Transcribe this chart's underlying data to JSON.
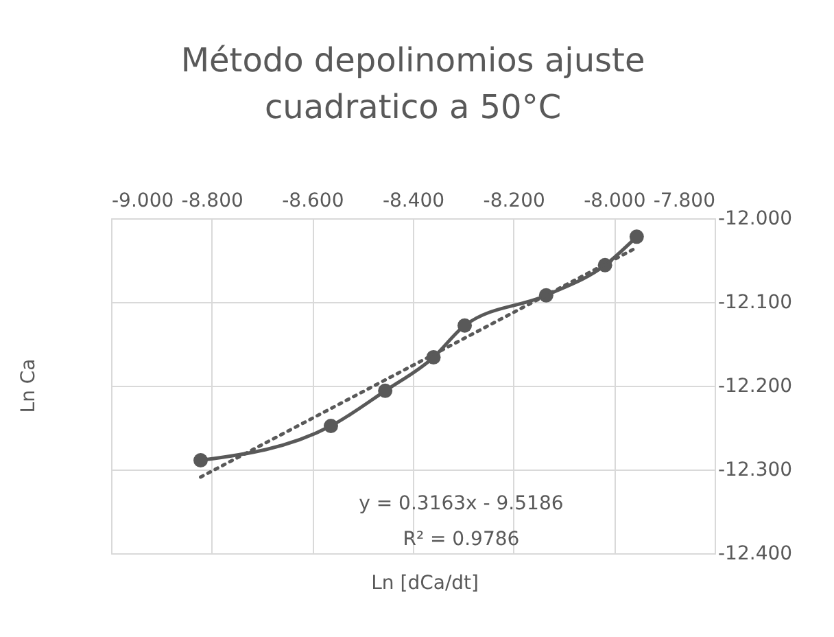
{
  "chart_data": {
    "type": "line",
    "title": "Método  depolinomios ajuste cuadratico a 50°C",
    "xlabel": "Ln [dCa/dt]",
    "ylabel": "Ln Ca",
    "x": [
      -8.822,
      -8.563,
      -8.455,
      -8.359,
      -8.297,
      -8.135,
      -8.018,
      -7.955
    ],
    "series": [
      {
        "color": "#595959",
        "values": [
          -12.289,
          -12.248,
          -12.206,
          -12.166,
          -12.128,
          -12.092,
          -12.056,
          -12.022
        ],
        "marker": "circle",
        "line_style": "solid"
      },
      {
        "type": "line",
        "color": "#595959",
        "x": [
          -8.822,
          -7.955
        ],
        "values": [
          -12.309,
          -12.035
        ],
        "marker": "none",
        "line_style": "dotted"
      }
    ],
    "xlim": [
      -9.0,
      -7.8
    ],
    "xticks": [
      {
        "value": -9.0,
        "label": "-9.000"
      },
      {
        "value": -8.8,
        "label": "-8.800"
      },
      {
        "value": -8.6,
        "label": "-8.600"
      },
      {
        "value": -8.4,
        "label": "-8.400"
      },
      {
        "value": -8.2,
        "label": "-8.200"
      },
      {
        "value": -8.0,
        "label": "-8.000"
      },
      {
        "value": -7.8,
        "label": "-7.800"
      }
    ],
    "ylim": [
      -12.4,
      -12.0
    ],
    "yticks": [
      {
        "value": -12.4,
        "label": "-12.400"
      },
      {
        "value": -12.3,
        "label": "-12.300"
      },
      {
        "value": -12.2,
        "label": "-12.200"
      },
      {
        "value": -12.1,
        "label": "-12.100"
      },
      {
        "value": -12.0,
        "label": "-12.000"
      }
    ],
    "annotations": [
      "y = 0.3163x - 9.5186",
      "R² = 0.9786"
    ],
    "grid": true
  }
}
